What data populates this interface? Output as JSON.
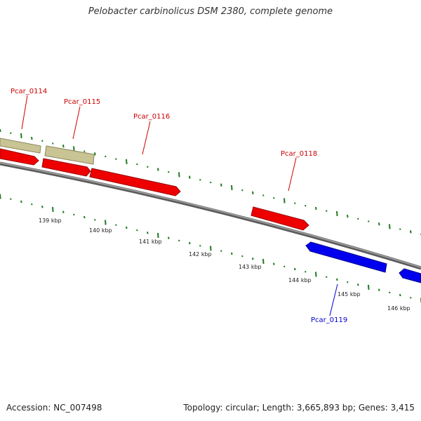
{
  "title": "Pelobacter carbinolicus DSM 2380, complete genome",
  "footer": {
    "accession": "Accession: NC_007498",
    "summary": "Topology: circular; Length: 3,665,893 bp; Genes: 3,415"
  },
  "colors": {
    "forward_gene": "#ee0000",
    "reverse_gene": "#0000ee",
    "other_feature": "#bdb88a",
    "backbone": "#777777",
    "gc_ticks": "#1f7a1f",
    "forward_label": "#cc0000",
    "reverse_label": "#0000cc"
  },
  "axis": {
    "unit": "kbp",
    "ticks": [
      "139 kbp",
      "140 kbp",
      "141 kbp",
      "142 kbp",
      "143 kbp",
      "144 kbp",
      "145 kbp",
      "146 kbp"
    ]
  },
  "genes": [
    {
      "id": "Pcar_0114",
      "strand": "forward",
      "label": "Pcar_0114"
    },
    {
      "id": "Pcar_0115",
      "strand": "forward",
      "label": "Pcar_0115"
    },
    {
      "id": "Pcar_0116",
      "strand": "forward",
      "label": "Pcar_0116"
    },
    {
      "id": "Pcar_0118",
      "strand": "forward",
      "label": "Pcar_0118"
    },
    {
      "id": "Pcar_0119",
      "strand": "reverse",
      "label": "Pcar_0119"
    }
  ]
}
